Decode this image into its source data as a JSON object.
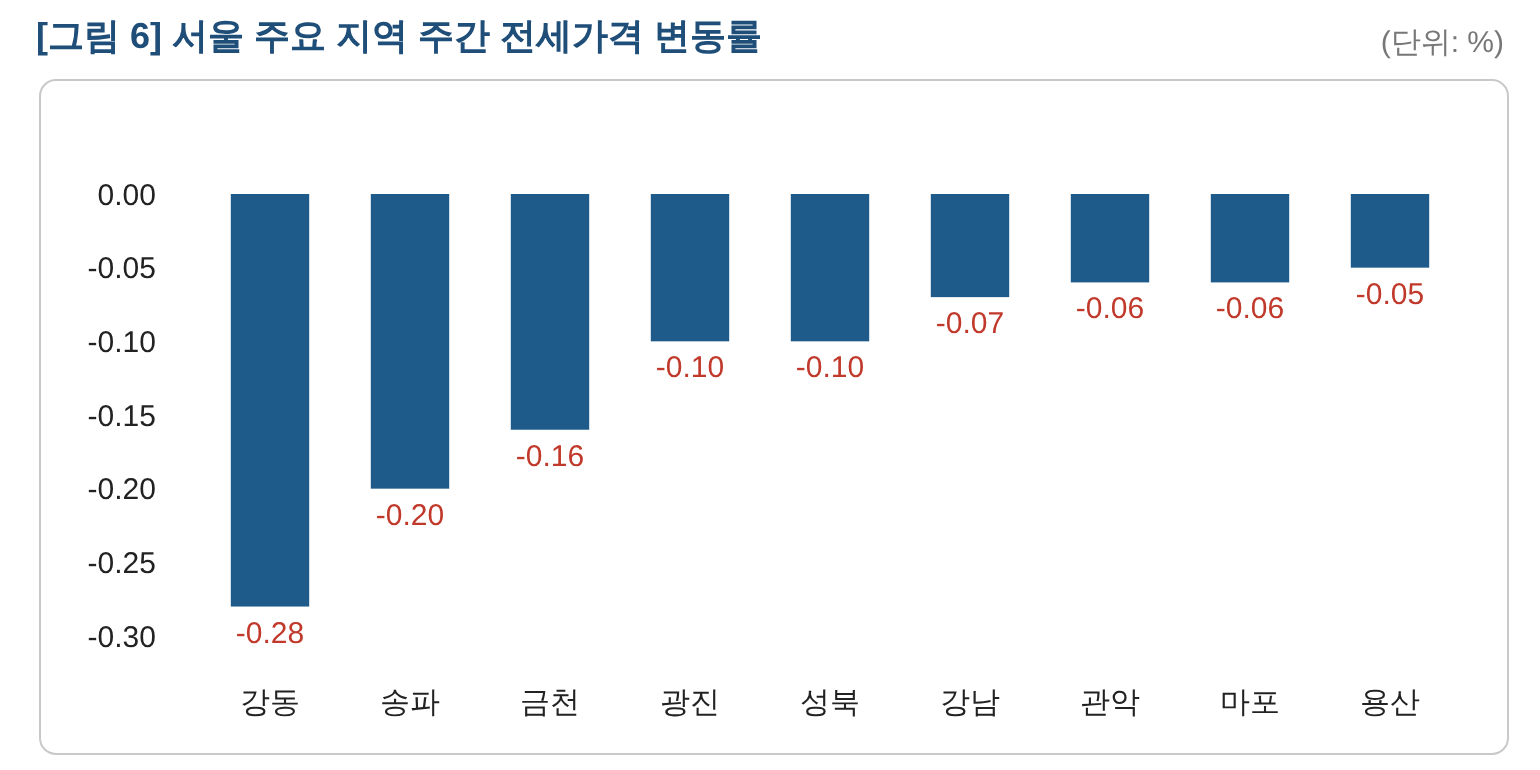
{
  "chart_data": {
    "type": "bar",
    "title": "[그림 6] 서울 주요 지역 주간 전세가격 변동률",
    "annotations": [
      "(단위: %)"
    ],
    "categories": [
      "강동",
      "송파",
      "금천",
      "광진",
      "성북",
      "강남",
      "관악",
      "마포",
      "용산"
    ],
    "values": [
      -0.28,
      -0.2,
      -0.16,
      -0.1,
      -0.1,
      -0.07,
      -0.06,
      -0.06,
      -0.05
    ],
    "value_labels": [
      "-0.28",
      "-0.20",
      "-0.16",
      "-0.10",
      "-0.10",
      "-0.07",
      "-0.06",
      "-0.06",
      "-0.05"
    ],
    "color": "#1f5b8a",
    "ylim": [
      -0.3,
      0
    ],
    "yticks": [
      {
        "value": 0,
        "label": "0.00"
      },
      {
        "value": -0.05,
        "label": "-0.05"
      },
      {
        "value": -0.1,
        "label": "-0.10"
      },
      {
        "value": -0.15,
        "label": "-0.15"
      },
      {
        "value": -0.2,
        "label": "-0.20"
      },
      {
        "value": -0.25,
        "label": "-0.25"
      },
      {
        "value": -0.3,
        "label": "-0.30"
      }
    ],
    "grid": false
  }
}
